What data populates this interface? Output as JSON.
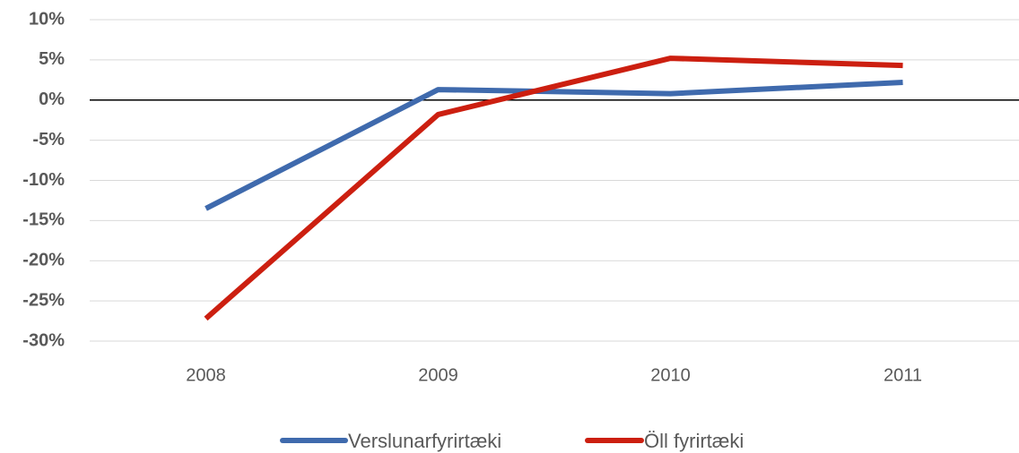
{
  "chart_data": {
    "type": "line",
    "categories": [
      "2008",
      "2009",
      "2010",
      "2011"
    ],
    "series": [
      {
        "name": "Verslunarfyrirtæki",
        "color": "#3f6aad",
        "values": [
          -13.5,
          1.3,
          0.8,
          2.2
        ]
      },
      {
        "name": "Öll fyrirtæki",
        "color": "#cc1f10",
        "values": [
          -27.2,
          -1.8,
          5.2,
          4.3
        ]
      }
    ],
    "ylim": [
      -30,
      10
    ],
    "yticks": [
      {
        "value": 10,
        "label": "10%"
      },
      {
        "value": 5,
        "label": "5%"
      },
      {
        "value": 0,
        "label": "0%"
      },
      {
        "value": -5,
        "label": "-5%"
      },
      {
        "value": -10,
        "label": "-10%"
      },
      {
        "value": -15,
        "label": "-15%"
      },
      {
        "value": -20,
        "label": "-20%"
      },
      {
        "value": -25,
        "label": "-25%"
      },
      {
        "value": -30,
        "label": "-30%"
      }
    ],
    "grid": true,
    "legend": "bottom"
  }
}
